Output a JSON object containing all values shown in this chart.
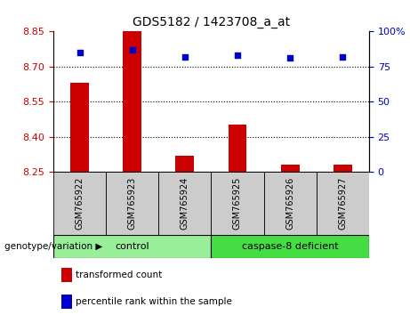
{
  "title": "GDS5182 / 1423708_a_at",
  "samples": [
    "GSM765922",
    "GSM765923",
    "GSM765924",
    "GSM765925",
    "GSM765926",
    "GSM765927"
  ],
  "transformed_counts": [
    8.63,
    8.85,
    8.32,
    8.45,
    8.28,
    8.28
  ],
  "percentile_ranks": [
    85,
    87,
    82,
    83,
    81,
    82
  ],
  "ylim_left": [
    8.25,
    8.85
  ],
  "ylim_right": [
    0,
    100
  ],
  "yticks_left": [
    8.25,
    8.4,
    8.55,
    8.7,
    8.85
  ],
  "yticks_right": [
    0,
    25,
    50,
    75,
    100
  ],
  "grid_values": [
    8.4,
    8.55,
    8.7
  ],
  "bar_color": "#cc0000",
  "dot_color": "#0000cc",
  "bar_baseline": 8.25,
  "groups": [
    {
      "label": "control",
      "indices": [
        0,
        1,
        2
      ],
      "color": "#99ee99"
    },
    {
      "label": "caspase-8 deficient",
      "indices": [
        3,
        4,
        5
      ],
      "color": "#44dd44"
    }
  ],
  "legend_items": [
    {
      "label": "transformed count",
      "color": "#cc0000"
    },
    {
      "label": "percentile rank within the sample",
      "color": "#0000cc"
    }
  ],
  "tick_color_left": "#cc0000",
  "tick_color_right": "#0000cc",
  "bar_width": 0.35,
  "group_label_text": "genotype/variation",
  "xtick_bg_color": "#cccccc",
  "plot_bg_color": "#ffffff",
  "fig_bg_color": "#ffffff"
}
